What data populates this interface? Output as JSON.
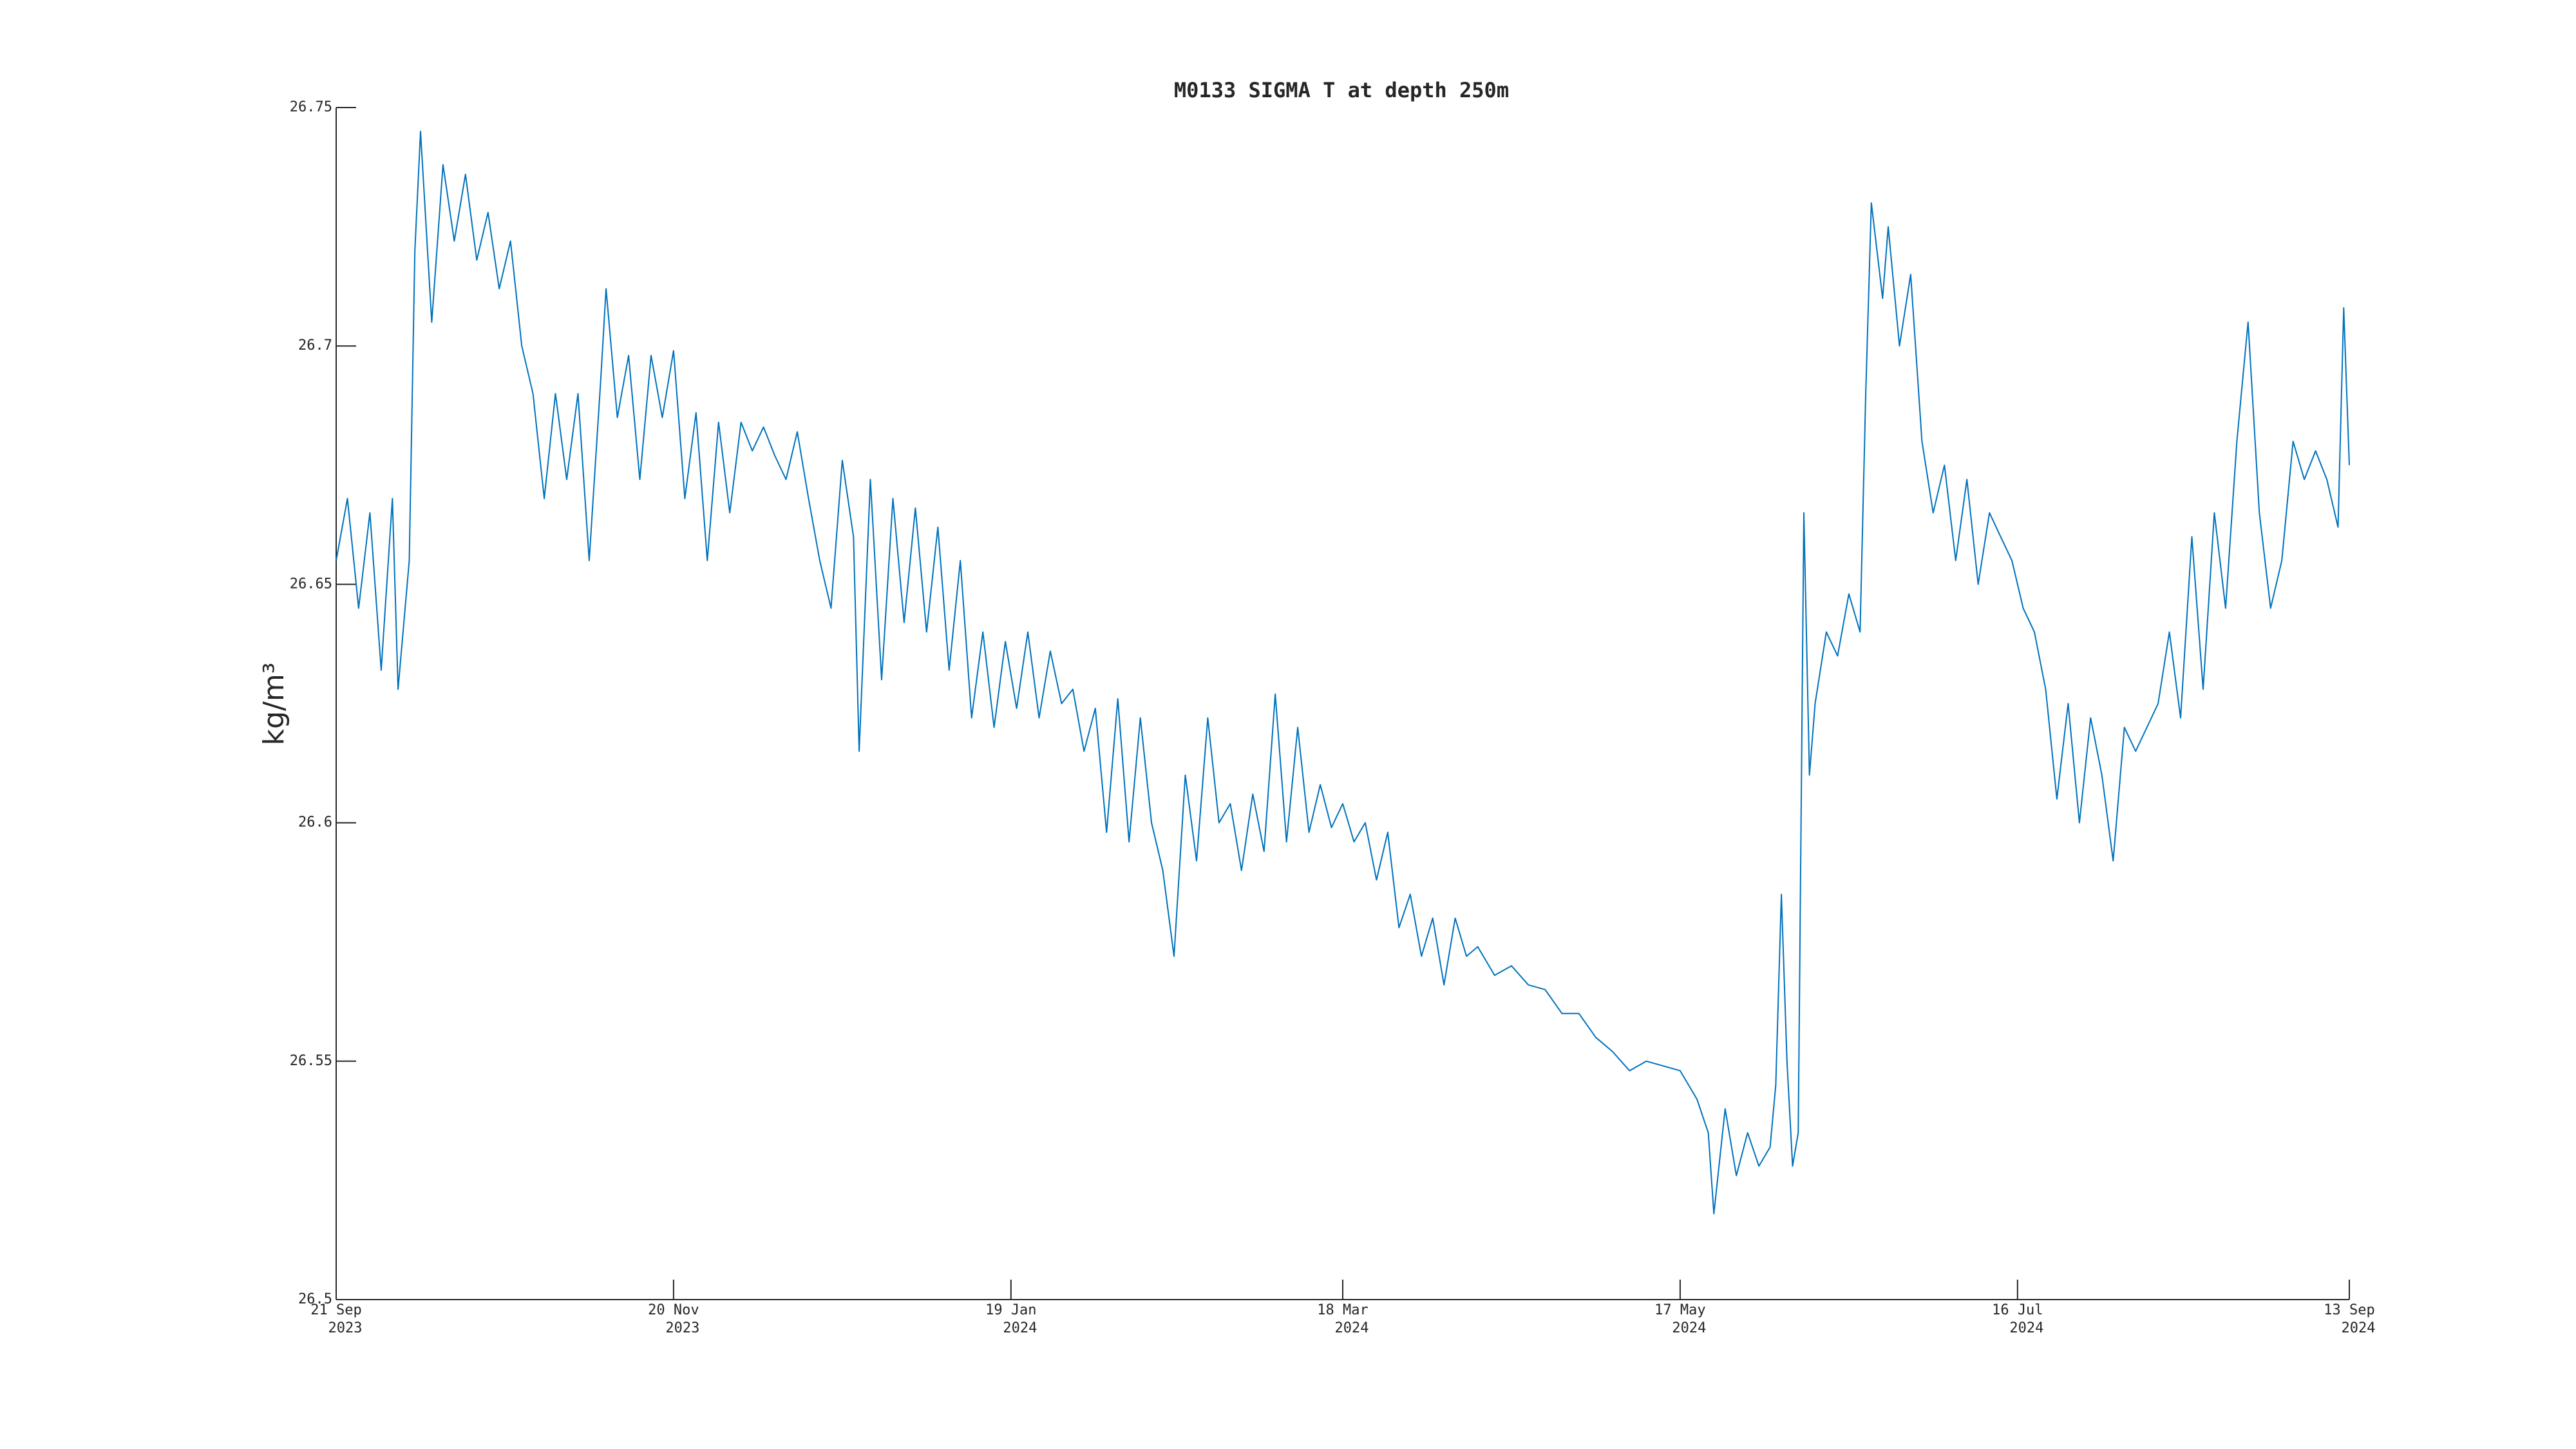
{
  "chart_data": {
    "type": "line",
    "title": "M0133 SIGMA T at depth 250m",
    "y_label": "kg/m³",
    "ylim": [
      26.5,
      26.75
    ],
    "yticks": [
      26.5,
      26.55,
      26.6,
      26.65,
      26.7,
      26.75
    ],
    "xlim": [
      "2023-09-21",
      "2024-09-13"
    ],
    "xticks": [
      {
        "value": "2023-09-21",
        "label": [
          "21 Sep",
          "2023"
        ]
      },
      {
        "value": "2023-11-20",
        "label": [
          "20 Nov",
          "2023"
        ]
      },
      {
        "value": "2024-01-19",
        "label": [
          "19 Jan",
          "2024"
        ]
      },
      {
        "value": "2024-03-18",
        "label": [
          "18 Mar",
          "2024"
        ]
      },
      {
        "value": "2024-05-17",
        "label": [
          "17 May",
          "2024"
        ]
      },
      {
        "value": "2024-07-16",
        "label": [
          "16 Jul",
          "2024"
        ]
      },
      {
        "value": "2024-09-13",
        "label": [
          "13 Sep",
          "2024"
        ]
      }
    ],
    "grid": false,
    "series": [
      {
        "name": "SIGMA T",
        "color": "#0072bd",
        "x": [
          "2023-09-21",
          "2023-09-23",
          "2023-09-25",
          "2023-09-27",
          "2023-09-29",
          "2023-10-01",
          "2023-10-02",
          "2023-10-04",
          "2023-10-05",
          "2023-10-06",
          "2023-10-08",
          "2023-10-10",
          "2023-10-12",
          "2023-10-14",
          "2023-10-16",
          "2023-10-18",
          "2023-10-20",
          "2023-10-22",
          "2023-10-24",
          "2023-10-26",
          "2023-10-28",
          "2023-10-30",
          "2023-11-01",
          "2023-11-03",
          "2023-11-05",
          "2023-11-07",
          "2023-11-08",
          "2023-11-10",
          "2023-11-12",
          "2023-11-14",
          "2023-11-16",
          "2023-11-18",
          "2023-11-20",
          "2023-11-22",
          "2023-11-24",
          "2023-11-26",
          "2023-11-28",
          "2023-11-30",
          "2023-12-02",
          "2023-12-04",
          "2023-12-06",
          "2023-12-08",
          "2023-12-10",
          "2023-12-12",
          "2023-12-14",
          "2023-12-16",
          "2023-12-18",
          "2023-12-20",
          "2023-12-22",
          "2023-12-23",
          "2023-12-25",
          "2023-12-27",
          "2023-12-29",
          "2023-12-31",
          "2024-01-02",
          "2024-01-04",
          "2024-01-06",
          "2024-01-08",
          "2024-01-10",
          "2024-01-12",
          "2024-01-14",
          "2024-01-16",
          "2024-01-18",
          "2024-01-20",
          "2024-01-22",
          "2024-01-24",
          "2024-01-26",
          "2024-01-28",
          "2024-01-30",
          "2024-02-01",
          "2024-02-03",
          "2024-02-05",
          "2024-02-07",
          "2024-02-09",
          "2024-02-11",
          "2024-02-13",
          "2024-02-15",
          "2024-02-17",
          "2024-02-19",
          "2024-02-21",
          "2024-02-23",
          "2024-02-25",
          "2024-02-27",
          "2024-02-29",
          "2024-03-02",
          "2024-03-04",
          "2024-03-06",
          "2024-03-08",
          "2024-03-10",
          "2024-03-12",
          "2024-03-14",
          "2024-03-16",
          "2024-03-18",
          "2024-03-20",
          "2024-03-22",
          "2024-03-24",
          "2024-03-26",
          "2024-03-28",
          "2024-03-30",
          "2024-04-01",
          "2024-04-03",
          "2024-04-05",
          "2024-04-07",
          "2024-04-09",
          "2024-04-11",
          "2024-04-14",
          "2024-04-17",
          "2024-04-20",
          "2024-04-23",
          "2024-04-26",
          "2024-04-29",
          "2024-05-02",
          "2024-05-05",
          "2024-05-08",
          "2024-05-11",
          "2024-05-14",
          "2024-05-17",
          "2024-05-20",
          "2024-05-22",
          "2024-05-23",
          "2024-05-25",
          "2024-05-27",
          "2024-05-29",
          "2024-05-31",
          "2024-06-02",
          "2024-06-03",
          "2024-06-04",
          "2024-06-05",
          "2024-06-06",
          "2024-06-07",
          "2024-06-08",
          "2024-06-09",
          "2024-06-10",
          "2024-06-12",
          "2024-06-14",
          "2024-06-16",
          "2024-06-18",
          "2024-06-19",
          "2024-06-20",
          "2024-06-22",
          "2024-06-23",
          "2024-06-25",
          "2024-06-27",
          "2024-06-29",
          "2024-07-01",
          "2024-07-03",
          "2024-07-05",
          "2024-07-07",
          "2024-07-09",
          "2024-07-11",
          "2024-07-13",
          "2024-07-15",
          "2024-07-17",
          "2024-07-19",
          "2024-07-21",
          "2024-07-23",
          "2024-07-25",
          "2024-07-27",
          "2024-07-29",
          "2024-07-31",
          "2024-08-02",
          "2024-08-04",
          "2024-08-06",
          "2024-08-08",
          "2024-08-10",
          "2024-08-12",
          "2024-08-14",
          "2024-08-16",
          "2024-08-18",
          "2024-08-20",
          "2024-08-22",
          "2024-08-24",
          "2024-08-26",
          "2024-08-28",
          "2024-08-30",
          "2024-09-01",
          "2024-09-03",
          "2024-09-05",
          "2024-09-07",
          "2024-09-09",
          "2024-09-11",
          "2024-09-12",
          "2024-09-13"
        ],
        "values": [
          26.655,
          26.668,
          26.645,
          26.665,
          26.632,
          26.668,
          26.628,
          26.655,
          26.72,
          26.745,
          26.705,
          26.738,
          26.722,
          26.736,
          26.718,
          26.728,
          26.712,
          26.722,
          26.7,
          26.69,
          26.668,
          26.69,
          26.672,
          26.69,
          26.655,
          26.692,
          26.712,
          26.685,
          26.698,
          26.672,
          26.698,
          26.685,
          26.699,
          26.668,
          26.686,
          26.655,
          26.684,
          26.665,
          26.684,
          26.678,
          26.683,
          26.677,
          26.672,
          26.682,
          26.668,
          26.655,
          26.645,
          26.676,
          26.66,
          26.615,
          26.672,
          26.63,
          26.668,
          26.642,
          26.666,
          26.64,
          26.662,
          26.632,
          26.655,
          26.622,
          26.64,
          26.62,
          26.638,
          26.624,
          26.64,
          26.622,
          26.636,
          26.625,
          26.628,
          26.615,
          26.624,
          26.598,
          26.626,
          26.596,
          26.622,
          26.6,
          26.59,
          26.572,
          26.61,
          26.592,
          26.622,
          26.6,
          26.604,
          26.59,
          26.606,
          26.594,
          26.627,
          26.596,
          26.62,
          26.598,
          26.608,
          26.599,
          26.604,
          26.596,
          26.6,
          26.588,
          26.598,
          26.578,
          26.585,
          26.572,
          26.58,
          26.566,
          26.58,
          26.572,
          26.574,
          26.568,
          26.57,
          26.566,
          26.565,
          26.56,
          26.56,
          26.555,
          26.552,
          26.548,
          26.55,
          26.549,
          26.548,
          26.542,
          26.535,
          26.518,
          26.54,
          26.526,
          26.535,
          26.528,
          26.532,
          26.545,
          26.585,
          26.55,
          26.528,
          26.535,
          26.665,
          26.61,
          26.625,
          26.64,
          26.635,
          26.648,
          26.64,
          26.69,
          26.73,
          26.71,
          26.725,
          26.7,
          26.715,
          26.68,
          26.665,
          26.675,
          26.655,
          26.672,
          26.65,
          26.665,
          26.66,
          26.655,
          26.645,
          26.64,
          26.628,
          26.605,
          26.625,
          26.6,
          26.622,
          26.61,
          26.592,
          26.62,
          26.615,
          26.62,
          26.625,
          26.64,
          26.622,
          26.66,
          26.628,
          26.665,
          26.645,
          26.68,
          26.705,
          26.665,
          26.645,
          26.655,
          26.68,
          26.672,
          26.678,
          26.672,
          26.662,
          26.708,
          26.675
        ]
      }
    ]
  }
}
